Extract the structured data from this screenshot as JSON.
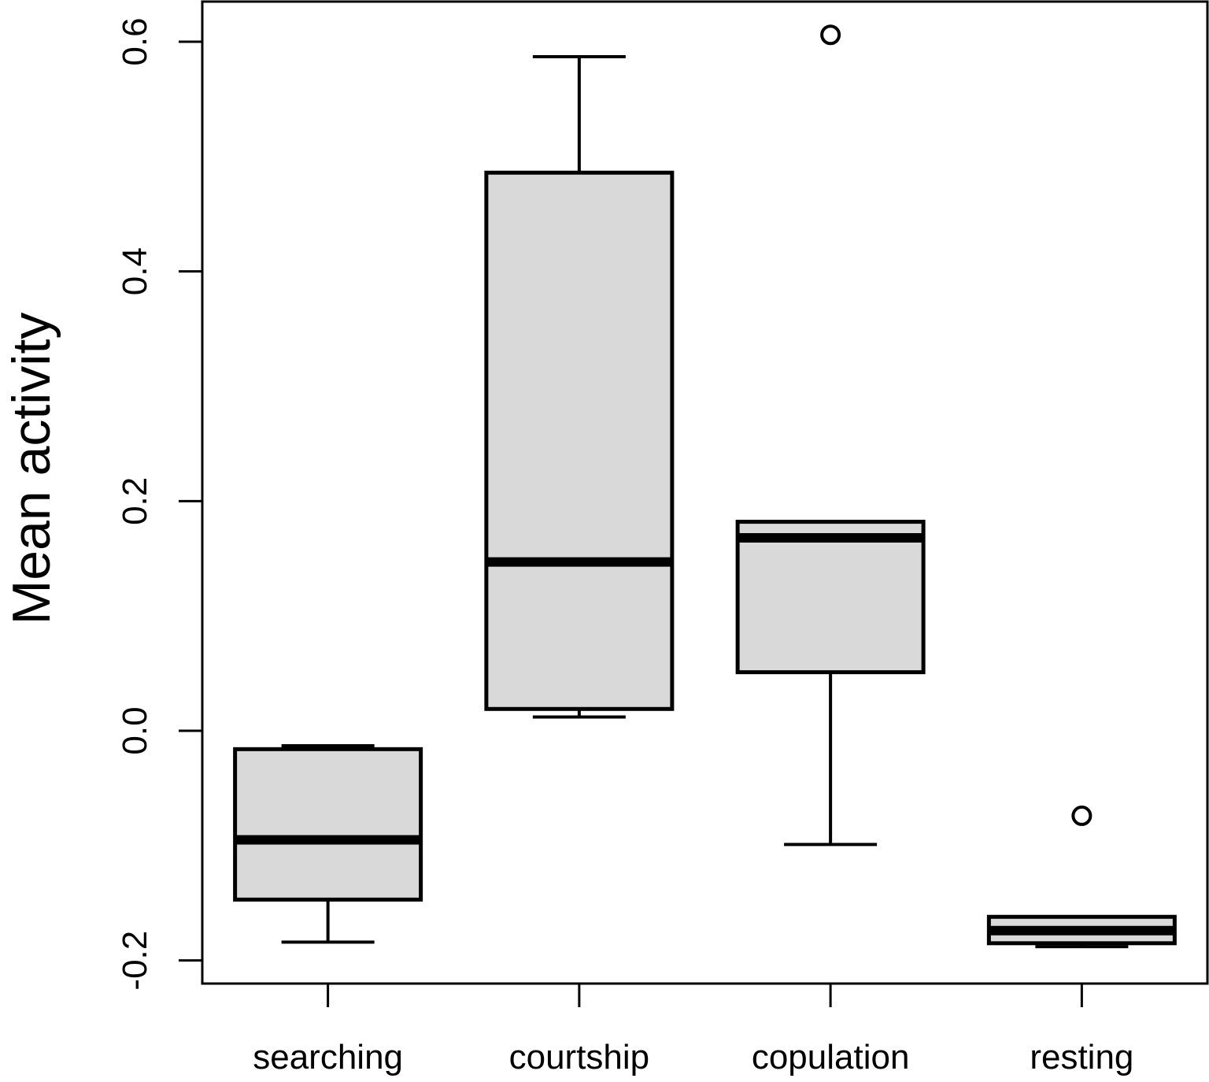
{
  "chart_data": {
    "type": "boxplot",
    "title": "",
    "xlabel": "",
    "ylabel": "Mean activity",
    "ylim": [
      -0.21,
      0.635
    ],
    "yticks": [
      -0.2,
      0.0,
      0.2,
      0.4,
      0.6
    ],
    "ytick_labels": [
      "-0.2",
      "0.0",
      "0.2",
      "0.4",
      "0.6"
    ],
    "grid": false,
    "box_fill": "#d9d9d9",
    "line_color": "#000000",
    "categories": [
      "searching",
      "courtship",
      "copulation",
      "resting"
    ],
    "boxes": [
      {
        "category": "searching",
        "whisker_low": -0.184,
        "q1": -0.147,
        "median": -0.095,
        "q3": -0.016,
        "whisker_high": -0.013,
        "outliers": []
      },
      {
        "category": "courtship",
        "whisker_low": 0.012,
        "q1": 0.019,
        "median": 0.147,
        "q3": 0.486,
        "whisker_high": 0.587,
        "outliers": []
      },
      {
        "category": "copulation",
        "whisker_low": -0.099,
        "q1": 0.051,
        "median": 0.168,
        "q3": 0.182,
        "whisker_high": 0.182,
        "outliers": [
          0.606
        ]
      },
      {
        "category": "resting",
        "whisker_low": -0.188,
        "q1": -0.185,
        "median": -0.174,
        "q3": -0.162,
        "whisker_high": -0.162,
        "outliers": [
          -0.074
        ]
      }
    ]
  }
}
